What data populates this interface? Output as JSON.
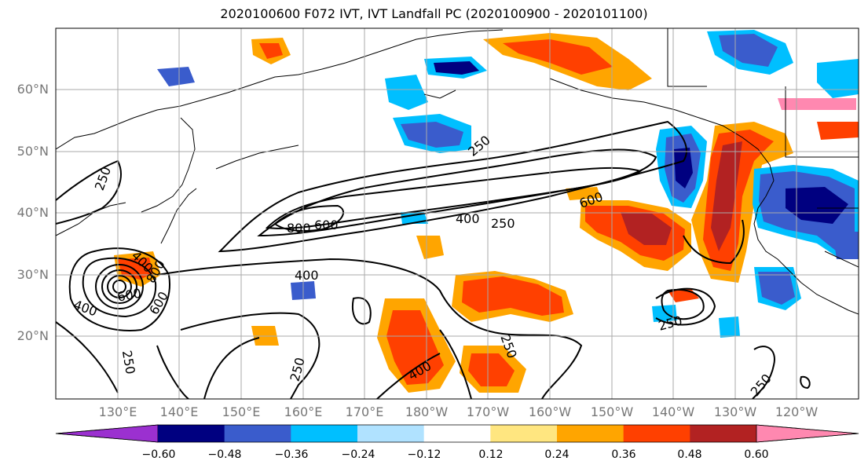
{
  "title": "2020100600 F072 IVT, IVT Landfall PC (2020100900 - 2020101100)",
  "map": {
    "lat_labels": [
      "60°N",
      "50°N",
      "40°N",
      "30°N",
      "20°N"
    ],
    "lon_labels": [
      "130°E",
      "140°E",
      "150°E",
      "160°E",
      "170°E",
      "180°W",
      "170°W",
      "160°W",
      "150°W",
      "140°W",
      "130°W",
      "120°W"
    ],
    "contour_labels": [
      "250",
      "250",
      "250",
      "250",
      "250",
      "250",
      "250",
      "250",
      "400",
      "400",
      "400",
      "400",
      "400",
      "600",
      "600",
      "600",
      "600",
      "800",
      "800"
    ]
  },
  "colorbar": {
    "tick_labels": [
      "−0.60",
      "−0.48",
      "−0.36",
      "−0.24",
      "−0.12",
      "0.12",
      "0.24",
      "0.36",
      "0.48",
      "0.60"
    ],
    "colors": [
      "#9b30d0",
      "#000080",
      "#3a5ccc",
      "#00bfff",
      "#b0e2ff",
      "#ffffff",
      "#ffe680",
      "#ffa500",
      "#ff4000",
      "#b22222",
      "#ff88b0"
    ]
  }
}
